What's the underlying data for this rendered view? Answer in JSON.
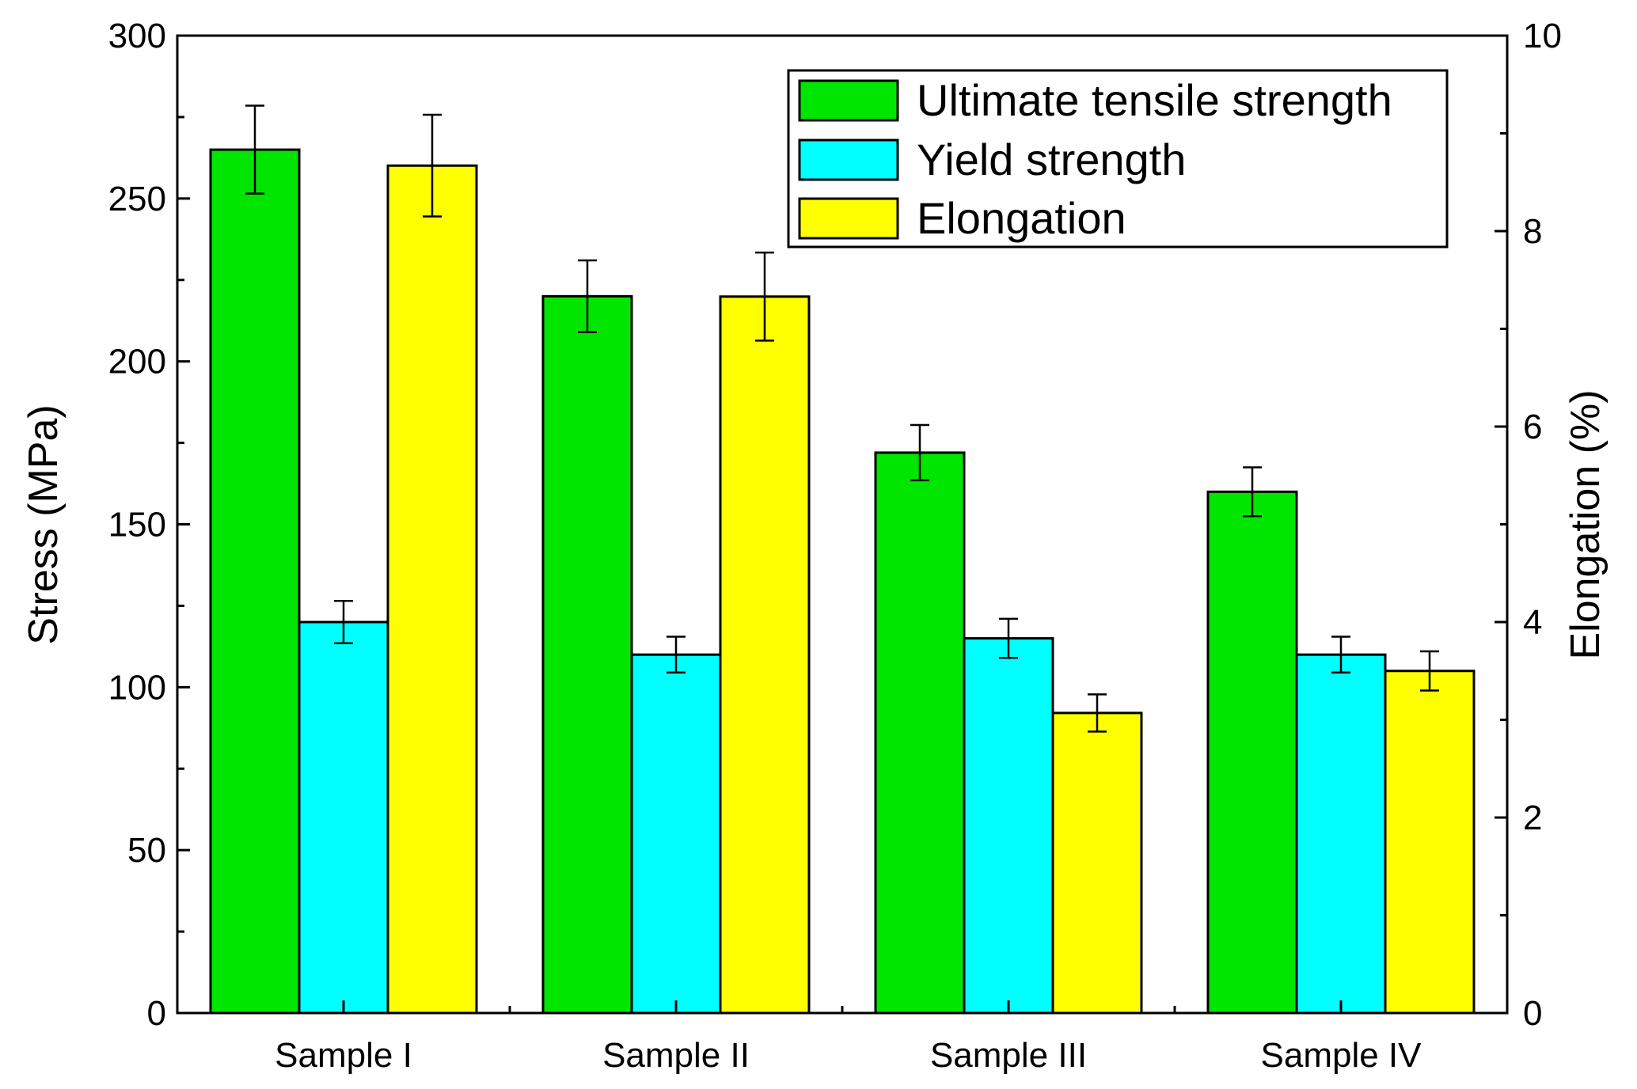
{
  "chart_data": {
    "type": "bar",
    "categories": [
      "Sample I",
      "Sample II",
      "Sample III",
      "Sample IV"
    ],
    "series": [
      {
        "name": "Ultimate tensile strength",
        "axis": "left",
        "color": "#00e600",
        "values": [
          265,
          220,
          172,
          160
        ],
        "errors": [
          13.5,
          11,
          8.5,
          7.5
        ]
      },
      {
        "name": "Yield strength",
        "axis": "left",
        "color": "#00ffff",
        "values": [
          120,
          110,
          115,
          110
        ],
        "errors": [
          6.5,
          5.5,
          6,
          5.5
        ]
      },
      {
        "name": "Elongation",
        "axis": "right",
        "color": "#ffff00",
        "values": [
          8.67,
          7.33,
          3.07,
          3.5
        ],
        "errors": [
          0.52,
          0.45,
          0.19,
          0.2
        ]
      }
    ],
    "ylabel": "Stress (MPa)",
    "y2label": "Elongation (%)",
    "ylim": [
      0,
      300
    ],
    "y2lim": [
      0,
      10
    ],
    "yticks": [
      "0",
      "50",
      "100",
      "150",
      "200",
      "250",
      "300"
    ],
    "y2ticks": [
      "0",
      "2",
      "4",
      "6",
      "8",
      "10"
    ],
    "legend": "top-right"
  }
}
